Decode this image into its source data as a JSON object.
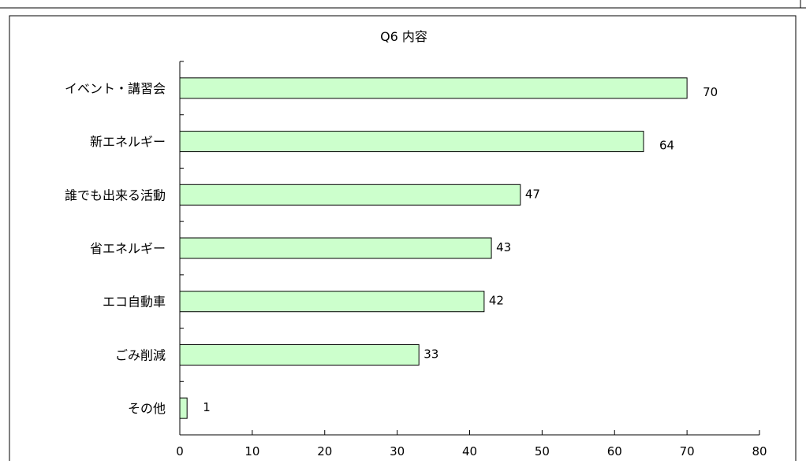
{
  "chart_data": {
    "type": "bar",
    "orientation": "horizontal",
    "title": "Q6 内容",
    "categories": [
      "イベント・講習会",
      "新エネルギー",
      "誰でも出来る活動",
      "省エネルギー",
      "エコ自動車",
      "ごみ削減",
      "その他"
    ],
    "values": [
      70,
      64,
      47,
      43,
      42,
      33,
      1
    ],
    "xlim": [
      0,
      80
    ],
    "xticks": [
      "0",
      "10",
      "20",
      "30",
      "40",
      "50",
      "60",
      "70",
      "80"
    ],
    "grid": false,
    "legend": "none",
    "bar_color": "#ccffcc",
    "bar_stroke": "#000000"
  }
}
